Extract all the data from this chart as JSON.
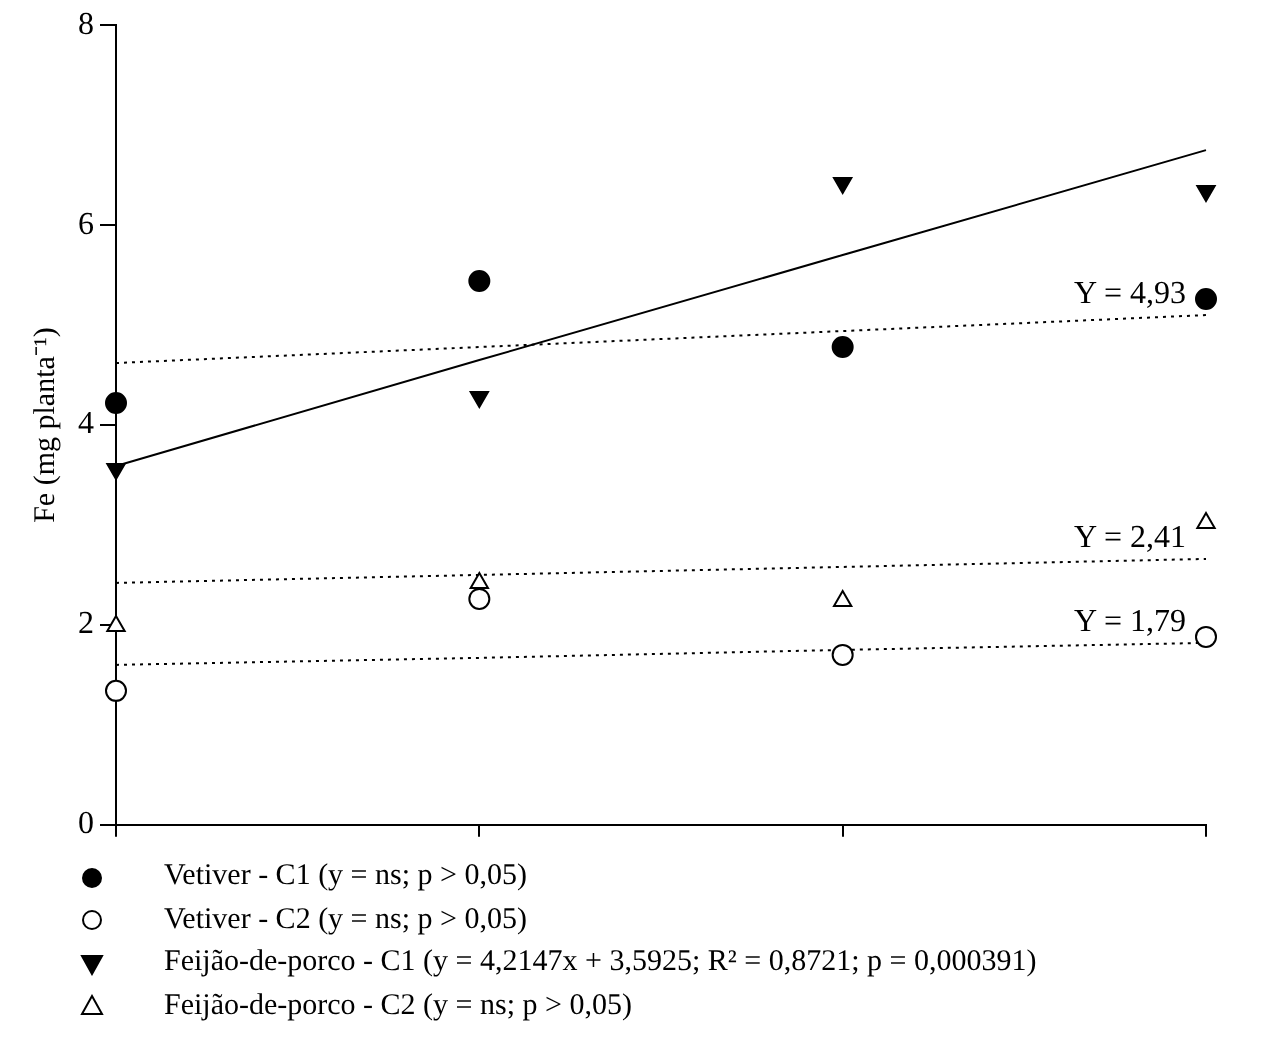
{
  "chart_data": {
    "type": "scatter",
    "ylabel": "Fe (mg planta⁻¹)",
    "categories": [
      null,
      null,
      null,
      null
    ],
    "ylim": [
      0,
      8
    ],
    "yticks": [
      0,
      2,
      4,
      6,
      8
    ],
    "grid": false,
    "legend": "bottom",
    "tick_labels": "y",
    "series": [
      {
        "name": "Vetiver - C1 (y = ns; p > 0,05)",
        "marker": "circle",
        "color": "#000000",
        "values": [
          4.22,
          5.44,
          4.78,
          5.26
        ]
      },
      {
        "name": "Vetiver - C2 (y = ns; p > 0,05)",
        "marker": "circle",
        "color": "#ffffff",
        "values": [
          1.34,
          2.26,
          1.7,
          1.88
        ]
      },
      {
        "name": "Feijão-de-porco - C1 (y = 4,2147x + 3,5925; R² = 0,8721; p = 0,000391)",
        "marker": "triangle",
        "color": "#000000",
        "values": [
          3.56,
          4.28,
          6.42,
          6.34
        ]
      },
      {
        "name": "Feijão-de-porco - C2 (y = ns; p > 0,05)",
        "marker": "triangle",
        "color": "#ffffff",
        "values": [
          1.99,
          2.42,
          2.24,
          3.02
        ]
      },
      {
        "type": "line",
        "marker": "none",
        "line_style": "solid",
        "color": "#000000",
        "values": [
          3.59,
          4.65,
          5.7,
          6.75
        ]
      },
      {
        "type": "line",
        "marker": "none",
        "line_style": "dotted",
        "color": "#000000",
        "values": [
          4.62,
          4.78,
          4.94,
          5.1
        ]
      },
      {
        "type": "line",
        "marker": "none",
        "line_style": "dotted",
        "color": "#000000",
        "values": [
          2.42,
          2.5,
          2.58,
          2.66
        ]
      },
      {
        "type": "line",
        "marker": "none",
        "line_style": "dotted",
        "color": "#000000",
        "values": [
          1.6,
          1.67,
          1.75,
          1.82
        ]
      }
    ],
    "annotations": [
      {
        "text": "Y = 4,93",
        "y": 5.1
      },
      {
        "text": "Y = 2,41",
        "y": 2.66
      },
      {
        "text": "Y = 1,79",
        "y": 1.82
      }
    ]
  }
}
